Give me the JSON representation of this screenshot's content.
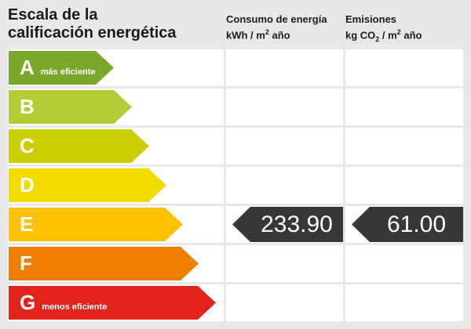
{
  "page": {
    "background": "#e8e8e8",
    "cell_background": "#ffffff",
    "text_color": "#1b1b1b"
  },
  "header": {
    "title_line1": "Escala de la",
    "title_line2": "calificación energética",
    "consumo": {
      "title": "Consumo de energía",
      "unit_pre": "kWh / m",
      "unit_sup": "2",
      "unit_post": " año"
    },
    "emisiones": {
      "title": "Emisiones",
      "unit_pre": "kg CO",
      "unit_sub": "2",
      "unit_mid": " / m",
      "unit_sup": "2",
      "unit_post": " año"
    }
  },
  "scale": {
    "rows": [
      {
        "letter": "A",
        "note": "más eficiente",
        "color": "#79a82a",
        "arrow_width": 134
      },
      {
        "letter": "B",
        "note": "",
        "color": "#b2cc34",
        "arrow_width": 157
      },
      {
        "letter": "C",
        "note": "",
        "color": "#cbce00",
        "arrow_width": 179
      },
      {
        "letter": "D",
        "note": "",
        "color": "#f2dc00",
        "arrow_width": 201
      },
      {
        "letter": "E",
        "note": "",
        "color": "#fcc200",
        "arrow_width": 222
      },
      {
        "letter": "F",
        "note": "",
        "color": "#ee7d00",
        "arrow_width": 242
      },
      {
        "letter": "G",
        "note": "menos eficiente",
        "color": "#e2241c",
        "arrow_width": 264
      }
    ]
  },
  "rating": {
    "letter": "E",
    "row_index": 4,
    "consumo_value": "233.90",
    "emisiones_value": "61.00",
    "pointer_color": "#373737",
    "value_text_color": "#ffffff"
  },
  "chart_data": {
    "type": "bar",
    "title": "Escala de la calificación energética",
    "categories": [
      "A",
      "B",
      "C",
      "D",
      "E",
      "F",
      "G"
    ],
    "category_notes": {
      "A": "más eficiente",
      "G": "menos eficiente"
    },
    "rating_letter": "E",
    "series": [
      {
        "name": "Consumo de energía kWh/m2 año",
        "values": [
          null,
          null,
          null,
          null,
          233.9,
          null,
          null
        ]
      },
      {
        "name": "Emisiones kg CO2/m2 año",
        "values": [
          null,
          null,
          null,
          null,
          61.0,
          null,
          null
        ]
      }
    ],
    "legend": "off",
    "colors": [
      "#79a82a",
      "#b2cc34",
      "#cbce00",
      "#f2dc00",
      "#fcc200",
      "#ee7d00",
      "#e2241c"
    ]
  }
}
